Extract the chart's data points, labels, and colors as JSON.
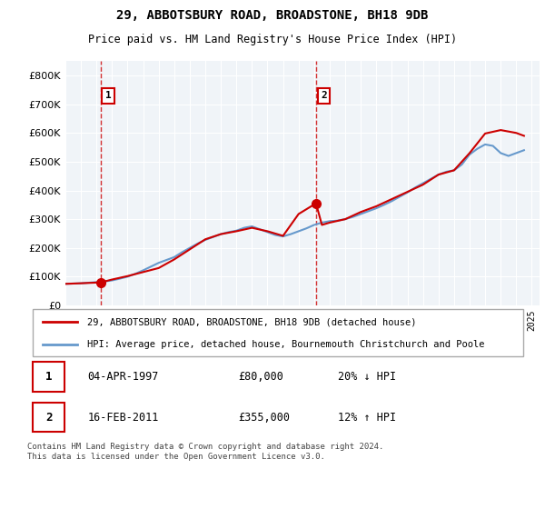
{
  "title_line1": "29, ABBOTSBURY ROAD, BROADSTONE, BH18 9DB",
  "title_line2": "Price paid vs. HM Land Registry's House Price Index (HPI)",
  "legend_label1": "29, ABBOTSBURY ROAD, BROADSTONE, BH18 9DB (detached house)",
  "legend_label2": "HPI: Average price, detached house, Bournemouth Christchurch and Poole",
  "annotation1_label": "1",
  "annotation1_date": "04-APR-1997",
  "annotation1_price": "£80,000",
  "annotation1_hpi": "20% ↓ HPI",
  "annotation2_label": "2",
  "annotation2_date": "16-FEB-2011",
  "annotation2_price": "£355,000",
  "annotation2_hpi": "12% ↑ HPI",
  "footnote": "Contains HM Land Registry data © Crown copyright and database right 2024.\nThis data is licensed under the Open Government Licence v3.0.",
  "sale1_year": 1997.25,
  "sale1_value": 80000,
  "sale2_year": 2011.12,
  "sale2_value": 355000,
  "hpi_color": "#6699cc",
  "price_color": "#cc0000",
  "vline_color": "#cc0000",
  "bg_color": "#f0f4f8",
  "plot_bg": "#f0f4f8",
  "ylim": [
    0,
    850000
  ],
  "xlim_start": 1995,
  "xlim_end": 2025.5,
  "ytick_step": 100000,
  "xticks": [
    1995,
    1996,
    1997,
    1998,
    1999,
    2000,
    2001,
    2002,
    2003,
    2004,
    2005,
    2006,
    2007,
    2008,
    2009,
    2010,
    2011,
    2012,
    2013,
    2014,
    2015,
    2016,
    2017,
    2018,
    2019,
    2020,
    2021,
    2022,
    2023,
    2024,
    2025
  ],
  "hpi_years": [
    1995,
    1995.5,
    1996,
    1996.5,
    1997,
    1997.5,
    1998,
    1998.5,
    1999,
    1999.5,
    2000,
    2000.5,
    2001,
    2001.5,
    2002,
    2002.5,
    2003,
    2003.5,
    2004,
    2004.5,
    2005,
    2005.5,
    2006,
    2006.5,
    2007,
    2007.5,
    2008,
    2008.5,
    2009,
    2009.5,
    2010,
    2010.5,
    2011,
    2011.5,
    2012,
    2012.5,
    2013,
    2013.5,
    2014,
    2014.5,
    2015,
    2015.5,
    2016,
    2016.5,
    2017,
    2017.5,
    2018,
    2018.5,
    2019,
    2019.5,
    2020,
    2020.5,
    2021,
    2021.5,
    2022,
    2022.5,
    2023,
    2023.5,
    2024,
    2024.5
  ],
  "hpi_values": [
    75000,
    76000,
    77000,
    79000,
    81000,
    83000,
    87000,
    93000,
    100000,
    110000,
    122000,
    135000,
    148000,
    158000,
    168000,
    185000,
    200000,
    215000,
    228000,
    238000,
    248000,
    255000,
    260000,
    270000,
    275000,
    265000,
    255000,
    245000,
    240000,
    248000,
    258000,
    268000,
    280000,
    288000,
    293000,
    295000,
    300000,
    308000,
    318000,
    328000,
    338000,
    350000,
    363000,
    378000,
    393000,
    410000,
    425000,
    440000,
    455000,
    465000,
    470000,
    490000,
    525000,
    545000,
    560000,
    555000,
    530000,
    520000,
    530000,
    540000
  ],
  "price_years": [
    1995,
    1996,
    1997.25,
    1997.5,
    1998,
    1999,
    2000,
    2001,
    2002,
    2003,
    2004,
    2005,
    2006,
    2007,
    2008,
    2009,
    2010,
    2011.12,
    2011.5,
    2012,
    2013,
    2014,
    2015,
    2016,
    2017,
    2018,
    2019,
    2020,
    2021,
    2022,
    2023,
    2024,
    2024.5
  ],
  "price_values": [
    75000,
    77000,
    80000,
    83000,
    90000,
    102000,
    116000,
    130000,
    160000,
    195000,
    230000,
    248000,
    258000,
    270000,
    258000,
    242000,
    318000,
    355000,
    280000,
    288000,
    300000,
    325000,
    345000,
    370000,
    395000,
    420000,
    455000,
    470000,
    530000,
    598000,
    610000,
    600000,
    590000
  ]
}
